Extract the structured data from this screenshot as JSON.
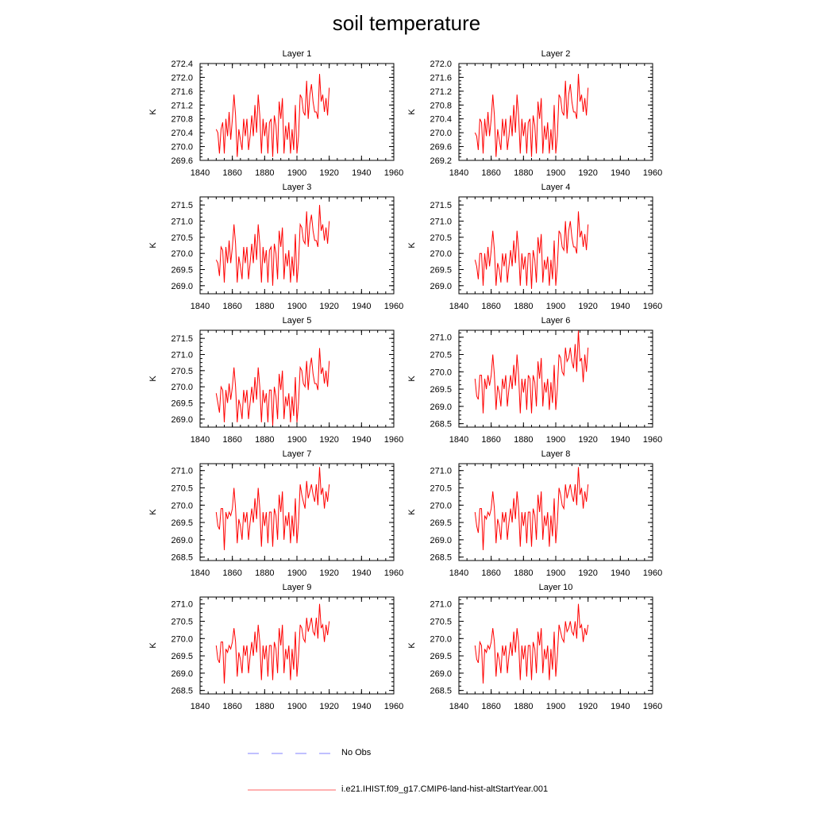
{
  "title": "soil temperature",
  "legend": {
    "items": [
      {
        "label": "No Obs",
        "color": "#8080ff",
        "style": "dashed"
      },
      {
        "label": "i.e21.IHIST.f09_g17.CMIP6-land-hist-altStartYear.001",
        "color": "#ff6060",
        "style": "solid"
      }
    ]
  },
  "chart_data": [
    {
      "type": "line",
      "title": "Layer 1",
      "ylabel": "K",
      "xlim": [
        1840,
        1960
      ],
      "ylim": [
        269.6,
        272.4
      ],
      "xticks": [
        "1840",
        "1860",
        "1880",
        "1900",
        "1920",
        "1940",
        "1960"
      ],
      "yticks": [
        "269.6",
        "270.0",
        "270.4",
        "270.8",
        "271.2",
        "271.6",
        "272.0",
        "272.4"
      ],
      "series": [
        {
          "color": "#ff0000",
          "x_start": 1850,
          "values": [
            270.5,
            270.4,
            269.8,
            270.5,
            270.7,
            269.8,
            270.8,
            270.3,
            271.0,
            270.2,
            270.8,
            271.5,
            270.9,
            269.7,
            270.5,
            270.2,
            269.9,
            270.8,
            270.3,
            270.8,
            269.9,
            270.3,
            270.9,
            270.3,
            271.2,
            270.4,
            271.5,
            270.9,
            269.8,
            270.8,
            270.3,
            270.7,
            269.8,
            270.7,
            270.8,
            269.7,
            270.9,
            270.6,
            269.8,
            271.3,
            270.8,
            271.4,
            269.8,
            270.6,
            270.2,
            270.7,
            269.8,
            270.5,
            269.9,
            271.2,
            269.8,
            270.3,
            271.5,
            271.4,
            271.0,
            270.9,
            271.9,
            270.8,
            271.5,
            271.8,
            271.3,
            271.0,
            271.0,
            270.8,
            272.1,
            271.3,
            271.5,
            271.0,
            271.4,
            270.9,
            271.7
          ]
        }
      ]
    },
    {
      "type": "line",
      "title": "Layer 2",
      "ylabel": "K",
      "xlim": [
        1840,
        1960
      ],
      "ylim": [
        269.2,
        272.0
      ],
      "xticks": [
        "1840",
        "1860",
        "1880",
        "1900",
        "1920",
        "1940",
        "1960"
      ],
      "yticks": [
        "269.2",
        "269.6",
        "270.0",
        "270.4",
        "270.8",
        "271.2",
        "271.6",
        "272.0"
      ],
      "series": [
        {
          "color": "#ff0000",
          "x_start": 1850,
          "values": [
            270.0,
            269.9,
            269.5,
            270.4,
            270.3,
            269.4,
            270.4,
            269.9,
            270.6,
            269.9,
            270.4,
            271.1,
            270.5,
            269.3,
            270.1,
            269.8,
            269.5,
            270.4,
            269.9,
            270.4,
            269.5,
            269.9,
            270.5,
            269.9,
            270.8,
            270.0,
            271.1,
            270.5,
            269.4,
            270.4,
            269.9,
            270.3,
            269.4,
            270.3,
            270.4,
            269.3,
            270.5,
            270.2,
            269.4,
            270.9,
            270.4,
            271.0,
            269.4,
            270.2,
            269.8,
            270.3,
            269.4,
            270.1,
            269.5,
            270.8,
            269.4,
            269.9,
            271.1,
            271.0,
            270.6,
            270.5,
            271.5,
            270.4,
            271.1,
            271.4,
            270.9,
            270.6,
            270.6,
            270.4,
            271.7,
            270.9,
            271.1,
            270.6,
            271.0,
            270.5,
            271.3
          ]
        }
      ]
    },
    {
      "type": "line",
      "title": "Layer 3",
      "ylabel": "K",
      "xlim": [
        1840,
        1960
      ],
      "ylim": [
        268.75,
        271.75
      ],
      "xticks": [
        "1840",
        "1860",
        "1880",
        "1900",
        "1920",
        "1940",
        "1960"
      ],
      "yticks": [
        "269.0",
        "269.5",
        "270.0",
        "270.5",
        "271.0",
        "271.5"
      ],
      "series": [
        {
          "color": "#ff0000",
          "x_start": 1850,
          "values": [
            269.8,
            269.7,
            269.3,
            270.2,
            270.1,
            269.1,
            270.2,
            269.7,
            270.4,
            269.7,
            270.2,
            270.9,
            270.3,
            269.1,
            269.9,
            269.6,
            269.2,
            270.2,
            269.7,
            270.2,
            269.2,
            269.7,
            270.3,
            269.7,
            270.6,
            269.8,
            270.9,
            270.3,
            269.1,
            270.2,
            269.7,
            270.1,
            269.1,
            270.1,
            270.2,
            269.0,
            270.3,
            270.0,
            269.2,
            270.7,
            270.2,
            270.8,
            269.2,
            270.0,
            269.6,
            270.1,
            269.1,
            269.9,
            269.3,
            270.6,
            269.1,
            269.7,
            270.9,
            270.8,
            270.4,
            270.3,
            271.3,
            270.2,
            270.9,
            271.2,
            270.7,
            270.4,
            270.4,
            270.2,
            271.5,
            270.7,
            270.9,
            270.4,
            270.8,
            270.3,
            271.0
          ]
        }
      ]
    },
    {
      "type": "line",
      "title": "Layer 4",
      "ylabel": "K",
      "xlim": [
        1840,
        1960
      ],
      "ylim": [
        268.75,
        271.75
      ],
      "xticks": [
        "1840",
        "1860",
        "1880",
        "1900",
        "1920",
        "1940",
        "1960"
      ],
      "yticks": [
        "269.0",
        "269.5",
        "270.0",
        "270.5",
        "271.0",
        "271.5"
      ],
      "series": [
        {
          "color": "#ff0000",
          "x_start": 1850,
          "values": [
            269.8,
            269.6,
            269.2,
            270.0,
            270.0,
            269.0,
            270.0,
            269.5,
            270.2,
            269.6,
            270.1,
            270.7,
            270.1,
            269.0,
            269.7,
            269.5,
            269.1,
            270.0,
            269.6,
            270.0,
            269.1,
            269.6,
            270.1,
            269.6,
            270.4,
            269.7,
            270.7,
            270.1,
            269.0,
            270.0,
            269.5,
            269.9,
            269.0,
            270.0,
            270.0,
            268.9,
            270.1,
            269.8,
            269.1,
            270.5,
            270.0,
            270.6,
            269.1,
            269.8,
            269.5,
            269.9,
            269.0,
            269.8,
            269.2,
            270.4,
            269.0,
            269.6,
            270.7,
            270.6,
            270.2,
            270.1,
            271.0,
            270.0,
            270.7,
            271.0,
            270.5,
            270.2,
            270.2,
            270.0,
            271.3,
            270.5,
            270.7,
            270.2,
            270.6,
            270.1,
            270.9
          ]
        }
      ]
    },
    {
      "type": "line",
      "title": "Layer 5",
      "ylabel": "K",
      "xlim": [
        1840,
        1960
      ],
      "ylim": [
        268.75,
        271.75
      ],
      "xticks": [
        "1840",
        "1860",
        "1880",
        "1900",
        "1920",
        "1940",
        "1960"
      ],
      "yticks": [
        "269.0",
        "269.5",
        "270.0",
        "270.5",
        "271.0",
        "271.5"
      ],
      "series": [
        {
          "color": "#ff0000",
          "x_start": 1850,
          "values": [
            269.8,
            269.5,
            269.2,
            270.0,
            269.9,
            268.9,
            269.9,
            269.5,
            270.1,
            269.6,
            270.0,
            270.6,
            270.0,
            268.9,
            269.6,
            269.4,
            269.0,
            269.9,
            269.5,
            269.9,
            269.0,
            269.5,
            270.0,
            269.5,
            270.3,
            269.6,
            270.6,
            270.0,
            268.9,
            269.9,
            269.5,
            269.8,
            268.9,
            269.9,
            269.9,
            268.8,
            270.0,
            269.7,
            269.0,
            270.4,
            269.9,
            270.5,
            269.0,
            269.7,
            269.4,
            269.8,
            268.9,
            269.7,
            269.1,
            270.3,
            268.9,
            269.5,
            270.6,
            270.5,
            270.1,
            270.0,
            270.8,
            269.9,
            270.6,
            270.9,
            270.4,
            270.1,
            270.1,
            269.9,
            271.2,
            270.4,
            270.6,
            270.1,
            270.5,
            270.0,
            270.8
          ]
        }
      ]
    },
    {
      "type": "line",
      "title": "Layer 6",
      "ylabel": "K",
      "xlim": [
        1840,
        1960
      ],
      "ylim": [
        268.4,
        271.2
      ],
      "xticks": [
        "1840",
        "1860",
        "1880",
        "1900",
        "1920",
        "1940",
        "1960"
      ],
      "yticks": [
        "268.5",
        "269.0",
        "269.5",
        "270.0",
        "270.5",
        "271.0"
      ],
      "series": [
        {
          "color": "#ff0000",
          "x_start": 1850,
          "values": [
            269.8,
            269.3,
            269.2,
            269.9,
            269.9,
            268.8,
            269.8,
            269.5,
            269.9,
            269.6,
            269.9,
            270.5,
            269.9,
            268.9,
            269.6,
            269.4,
            269.0,
            269.8,
            269.5,
            269.9,
            269.0,
            269.5,
            269.9,
            269.5,
            270.2,
            269.6,
            270.5,
            269.9,
            268.8,
            269.8,
            269.4,
            269.8,
            268.9,
            269.9,
            269.8,
            268.8,
            269.9,
            269.7,
            269.0,
            270.3,
            269.8,
            270.4,
            269.0,
            269.7,
            269.4,
            269.8,
            268.9,
            269.7,
            269.1,
            270.2,
            268.9,
            269.5,
            270.5,
            270.4,
            270.0,
            269.9,
            270.7,
            270.3,
            270.4,
            270.7,
            270.3,
            270.1,
            270.8,
            270.0,
            271.2,
            270.3,
            270.4,
            269.7,
            270.5,
            270.0,
            270.7
          ]
        }
      ]
    },
    {
      "type": "line",
      "title": "Layer 7",
      "ylabel": "K",
      "xlim": [
        1840,
        1960
      ],
      "ylim": [
        268.4,
        271.2
      ],
      "xticks": [
        "1840",
        "1860",
        "1880",
        "1900",
        "1920",
        "1940",
        "1960"
      ],
      "yticks": [
        "268.5",
        "269.0",
        "269.5",
        "270.0",
        "270.5",
        "271.0"
      ],
      "series": [
        {
          "color": "#ff0000",
          "x_start": 1850,
          "values": [
            269.8,
            269.4,
            269.3,
            269.9,
            269.9,
            268.7,
            269.8,
            269.6,
            269.8,
            269.7,
            269.9,
            270.5,
            269.9,
            268.9,
            269.6,
            269.4,
            269.0,
            269.8,
            269.5,
            269.8,
            269.0,
            269.5,
            269.9,
            269.5,
            270.2,
            269.6,
            270.5,
            269.9,
            268.8,
            269.8,
            269.4,
            269.8,
            268.9,
            269.8,
            269.8,
            268.8,
            269.9,
            269.7,
            269.0,
            270.3,
            269.8,
            270.4,
            269.0,
            269.7,
            269.4,
            269.8,
            268.9,
            269.7,
            269.1,
            270.2,
            268.9,
            269.5,
            270.6,
            270.3,
            270.1,
            269.9,
            270.7,
            270.2,
            270.4,
            270.6,
            270.3,
            270.1,
            270.6,
            270.0,
            271.1,
            270.3,
            270.5,
            269.9,
            270.4,
            270.1,
            270.6
          ]
        }
      ]
    },
    {
      "type": "line",
      "title": "Layer 8",
      "ylabel": "K",
      "xlim": [
        1840,
        1960
      ],
      "ylim": [
        268.4,
        271.2
      ],
      "xticks": [
        "1840",
        "1860",
        "1880",
        "1900",
        "1920",
        "1940",
        "1960"
      ],
      "yticks": [
        "268.5",
        "269.0",
        "269.5",
        "270.0",
        "270.5",
        "271.0"
      ],
      "series": [
        {
          "color": "#ff0000",
          "x_start": 1850,
          "values": [
            269.8,
            269.4,
            269.2,
            269.9,
            269.9,
            268.7,
            269.7,
            269.6,
            269.8,
            269.7,
            269.9,
            270.4,
            269.9,
            268.9,
            269.6,
            269.4,
            269.0,
            269.8,
            269.5,
            269.8,
            269.0,
            269.5,
            269.9,
            269.5,
            270.2,
            269.6,
            270.4,
            269.9,
            268.8,
            269.8,
            269.4,
            269.8,
            268.9,
            269.8,
            269.8,
            268.8,
            269.9,
            269.7,
            269.0,
            270.3,
            269.8,
            270.4,
            269.0,
            269.7,
            269.4,
            269.8,
            268.8,
            269.7,
            269.1,
            270.2,
            268.9,
            269.5,
            270.5,
            270.3,
            270.0,
            269.9,
            270.6,
            270.2,
            270.4,
            270.6,
            270.3,
            270.1,
            270.6,
            270.0,
            271.1,
            270.3,
            270.5,
            269.9,
            270.4,
            270.1,
            270.6
          ]
        }
      ]
    },
    {
      "type": "line",
      "title": "Layer 9",
      "ylabel": "K",
      "xlim": [
        1840,
        1960
      ],
      "ylim": [
        268.4,
        271.2
      ],
      "xticks": [
        "1840",
        "1860",
        "1880",
        "1900",
        "1920",
        "1940",
        "1960"
      ],
      "yticks": [
        "268.5",
        "269.0",
        "269.5",
        "270.0",
        "270.5",
        "271.0"
      ],
      "series": [
        {
          "color": "#ff0000",
          "x_start": 1850,
          "values": [
            269.8,
            269.4,
            269.3,
            269.9,
            269.9,
            268.7,
            269.7,
            269.6,
            269.8,
            269.7,
            269.9,
            270.3,
            269.9,
            268.9,
            269.6,
            269.4,
            269.0,
            269.8,
            269.5,
            269.8,
            269.0,
            269.5,
            269.9,
            269.5,
            270.2,
            269.6,
            270.4,
            269.9,
            268.8,
            269.8,
            269.4,
            269.8,
            268.9,
            269.8,
            269.8,
            268.8,
            269.9,
            269.7,
            269.0,
            270.3,
            269.8,
            270.4,
            269.0,
            269.7,
            269.4,
            269.8,
            268.8,
            269.7,
            269.1,
            270.2,
            268.9,
            269.5,
            270.4,
            270.3,
            270.0,
            269.9,
            270.6,
            270.2,
            270.4,
            270.6,
            270.2,
            270.1,
            270.6,
            270.0,
            271.0,
            270.3,
            270.4,
            269.9,
            270.4,
            270.1,
            270.5
          ]
        }
      ]
    },
    {
      "type": "line",
      "title": "Layer 10",
      "ylabel": "K",
      "xlim": [
        1840,
        1960
      ],
      "ylim": [
        268.4,
        271.2
      ],
      "xticks": [
        "1840",
        "1860",
        "1880",
        "1900",
        "1920",
        "1940",
        "1960"
      ],
      "yticks": [
        "268.5",
        "269.0",
        "269.5",
        "270.0",
        "270.5",
        "271.0"
      ],
      "series": [
        {
          "color": "#ff0000",
          "x_start": 1850,
          "values": [
            269.8,
            269.4,
            269.3,
            269.9,
            269.8,
            268.7,
            269.7,
            269.6,
            269.8,
            269.7,
            269.9,
            270.3,
            269.9,
            268.9,
            269.6,
            269.4,
            269.0,
            269.8,
            269.5,
            269.8,
            269.0,
            269.5,
            269.9,
            269.5,
            270.2,
            269.6,
            270.3,
            269.9,
            268.8,
            269.8,
            269.4,
            269.8,
            268.9,
            269.8,
            269.8,
            268.8,
            269.9,
            269.7,
            269.0,
            270.2,
            269.8,
            270.3,
            269.0,
            269.7,
            269.4,
            269.8,
            268.8,
            269.7,
            269.1,
            270.2,
            268.9,
            269.5,
            270.4,
            270.2,
            270.0,
            269.9,
            270.5,
            270.2,
            270.3,
            270.5,
            270.2,
            270.1,
            270.5,
            270.0,
            271.0,
            270.3,
            270.4,
            269.9,
            270.3,
            270.1,
            270.4
          ]
        }
      ]
    }
  ]
}
